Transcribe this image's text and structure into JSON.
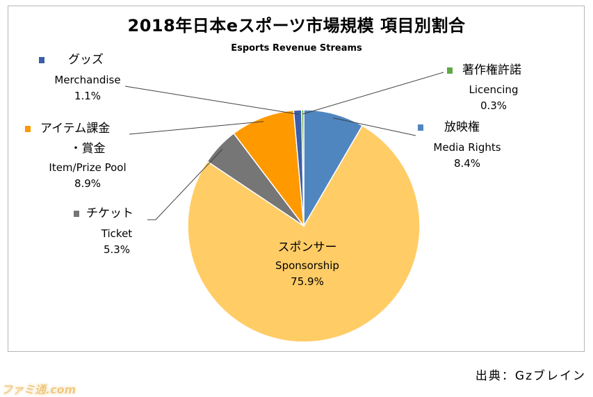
{
  "chart_data": {
    "type": "pie",
    "title": "2018年日本eスポーツ市場規模 項目別割合",
    "subtitle": "Esports Revenue Streams",
    "unit": "%",
    "slices": [
      {
        "jp": "スポンサー",
        "en": "Sponsorship",
        "value": 75.9,
        "label": "75.9%",
        "color": "#ffcc66"
      },
      {
        "jp": "チケット",
        "en": "Ticket",
        "value": 5.3,
        "label": "5.3%",
        "color": "#767676"
      },
      {
        "jp": "アイテム課金",
        "jp2": "・賞金",
        "en": "Item/Prize Pool",
        "value": 8.9,
        "label": "8.9%",
        "color": "#ff9900"
      },
      {
        "jp": "グッズ",
        "en": "Merchandise",
        "value": 1.1,
        "label": "1.1%",
        "color": "#3c5ea8"
      },
      {
        "jp": "著作権許諾",
        "en": "Licencing",
        "value": 0.3,
        "label": "0.3%",
        "color": "#5fa844"
      },
      {
        "jp": "放映権",
        "en": "Media Rights",
        "value": 8.4,
        "label": "8.4%",
        "color": "#4f86c0"
      }
    ]
  },
  "source": "出典：Gzブレイン",
  "logo": "ファミ通.com"
}
